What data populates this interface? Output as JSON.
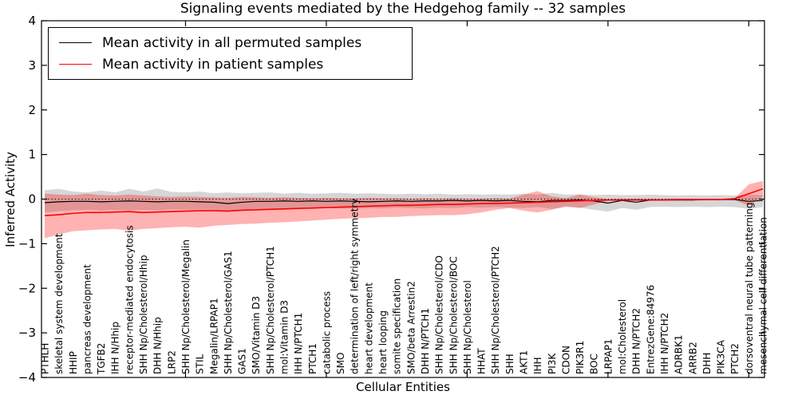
{
  "chart_data": {
    "type": "line",
    "title": "Signaling events mediated by the Hedgehog family -- 32 samples",
    "xlabel": "Cellular Entities",
    "ylabel": "Inferred Activity",
    "ylim": [
      -4,
      4
    ],
    "y_ticks": [
      4,
      3,
      2,
      1,
      0,
      -1,
      -2,
      -3,
      -4
    ],
    "x_tick_indices": [
      10,
      20,
      30,
      40,
      50
    ],
    "grid": false,
    "legend_position": "upper left",
    "reference_line_y": 0,
    "categories": [
      "PTHLH",
      "skeletal system development",
      "HHIP",
      "pancreas development",
      "TGFB2",
      "IHH N/Hhip",
      "receptor-mediated endocytosis",
      "SHH Np/Cholesterol/Hhip",
      "DHH N/Hhip",
      "LRP2",
      "SHH Np/Cholesterol/Megalin",
      "STIL",
      "Megalin/LRPAP1",
      "SHH Np/Cholesterol/GAS1",
      "GAS1",
      "SMO/Vitamin D3",
      "SHH Np/Cholesterol/PTCH1",
      "mol:Vitamin D3",
      "IHH N/PTCH1",
      "PTCH1",
      "catabolic process",
      "SMO",
      "determination of left/right symmetry",
      "heart development",
      "heart looping",
      "somite specification",
      "SMO/beta Arrestin2",
      "DHH N/PTCH1",
      "SHH Np/Cholesterol/CDO",
      "SHH Np/Cholesterol/BOC",
      "SHH Np/Cholesterol",
      "HHAT",
      "SHH Np/Cholesterol/PTCH2",
      "SHH",
      "AKT1",
      "IHH",
      "PI3K",
      "CDON",
      "PIK3R1",
      "BOC",
      "LRPAP1",
      "mol:Cholesterol",
      "DHH N/PTCH2",
      "EntrezGene:84976",
      "IHH N/PTCH2",
      "ADRBK1",
      "ARRB2",
      "DHH",
      "PIK3CA",
      "PTCH2",
      "dorsoventral neural tube patterning",
      "mesenchymal cell differentiation"
    ],
    "series": [
      {
        "name": "Mean activity in all permuted samples",
        "color": "#000000",
        "band_color": "rgba(0,0,0,0.16)",
        "values": [
          -0.08,
          -0.06,
          -0.05,
          -0.05,
          -0.06,
          -0.05,
          -0.04,
          -0.05,
          -0.06,
          -0.05,
          -0.05,
          -0.06,
          -0.07,
          -0.1,
          -0.07,
          -0.05,
          -0.05,
          -0.04,
          -0.05,
          -0.04,
          -0.05,
          -0.04,
          -0.05,
          -0.06,
          -0.05,
          -0.04,
          -0.05,
          -0.04,
          -0.04,
          -0.03,
          -0.04,
          -0.03,
          -0.04,
          -0.03,
          -0.05,
          -0.06,
          -0.03,
          -0.03,
          -0.02,
          -0.04,
          -0.09,
          -0.03,
          -0.07,
          -0.02,
          -0.02,
          -0.02,
          -0.02,
          -0.01,
          -0.01,
          -0.01,
          -0.05,
          -0.03
        ],
        "band_upper": [
          0.2,
          0.23,
          0.17,
          0.15,
          0.19,
          0.15,
          0.23,
          0.17,
          0.24,
          0.16,
          0.15,
          0.17,
          0.13,
          0.15,
          0.13,
          0.14,
          0.15,
          0.12,
          0.14,
          0.12,
          0.13,
          0.14,
          0.12,
          0.13,
          0.12,
          0.11,
          0.12,
          0.11,
          0.12,
          0.1,
          0.11,
          0.1,
          0.11,
          0.1,
          0.12,
          0.1,
          0.14,
          0.1,
          0.11,
          0.09,
          0.1,
          0.09,
          0.09,
          0.1,
          0.09,
          0.08,
          0.09,
          0.08,
          0.09,
          0.08,
          0.1,
          0.09
        ],
        "band_lower": [
          -0.3,
          -0.27,
          -0.25,
          -0.24,
          -0.26,
          -0.24,
          -0.25,
          -0.24,
          -0.25,
          -0.23,
          -0.24,
          -0.23,
          -0.24,
          -0.27,
          -0.24,
          -0.22,
          -0.23,
          -0.22,
          -0.21,
          -0.22,
          -0.2,
          -0.21,
          -0.22,
          -0.2,
          -0.21,
          -0.19,
          -0.2,
          -0.21,
          -0.19,
          -0.2,
          -0.18,
          -0.19,
          -0.18,
          -0.19,
          -0.2,
          -0.18,
          -0.22,
          -0.18,
          -0.19,
          -0.24,
          -0.28,
          -0.2,
          -0.24,
          -0.18,
          -0.17,
          -0.18,
          -0.17,
          -0.18,
          -0.17,
          -0.18,
          -0.22,
          -0.18
        ]
      },
      {
        "name": "Mean activity in patient samples",
        "color": "#ff0000",
        "band_color": "rgba(255,0,0,0.30)",
        "values": [
          -0.37,
          -0.35,
          -0.32,
          -0.3,
          -0.3,
          -0.29,
          -0.28,
          -0.3,
          -0.29,
          -0.28,
          -0.27,
          -0.26,
          -0.26,
          -0.27,
          -0.25,
          -0.24,
          -0.23,
          -0.22,
          -0.21,
          -0.2,
          -0.19,
          -0.18,
          -0.17,
          -0.16,
          -0.15,
          -0.14,
          -0.14,
          -0.13,
          -0.12,
          -0.12,
          -0.11,
          -0.1,
          -0.1,
          -0.09,
          -0.08,
          -0.07,
          -0.06,
          -0.05,
          -0.04,
          -0.03,
          -0.02,
          -0.02,
          -0.02,
          -0.02,
          -0.02,
          -0.01,
          -0.01,
          -0.01,
          -0.01,
          0.01,
          0.12,
          0.23
        ],
        "band_upper": [
          0.12,
          0.1,
          0.09,
          0.12,
          0.09,
          0.08,
          0.1,
          0.08,
          0.06,
          0.05,
          0.06,
          0.05,
          0.04,
          0.03,
          0.05,
          0.04,
          0.03,
          0.04,
          0.03,
          0.02,
          0.03,
          0.02,
          0.02,
          0.03,
          0.02,
          0.02,
          0.01,
          0.02,
          0.01,
          0.02,
          0.01,
          0.01,
          0.02,
          0.01,
          0.1,
          0.18,
          0.06,
          0.02,
          0.1,
          0.04,
          0.0,
          0.01,
          0.01,
          0.01,
          0.01,
          0.01,
          0.0,
          0.0,
          0.0,
          0.02,
          0.33,
          0.41
        ],
        "band_lower": [
          -0.88,
          -0.79,
          -0.72,
          -0.7,
          -0.68,
          -0.67,
          -0.71,
          -0.67,
          -0.65,
          -0.63,
          -0.62,
          -0.64,
          -0.6,
          -0.58,
          -0.56,
          -0.55,
          -0.53,
          -0.52,
          -0.5,
          -0.48,
          -0.46,
          -0.44,
          -0.43,
          -0.42,
          -0.4,
          -0.4,
          -0.38,
          -0.37,
          -0.36,
          -0.36,
          -0.34,
          -0.3,
          -0.24,
          -0.2,
          -0.26,
          -0.3,
          -0.24,
          -0.16,
          -0.2,
          -0.12,
          -0.04,
          -0.04,
          -0.04,
          -0.04,
          -0.03,
          -0.03,
          -0.03,
          -0.03,
          -0.03,
          -0.02,
          -0.15,
          0.05
        ]
      }
    ]
  }
}
